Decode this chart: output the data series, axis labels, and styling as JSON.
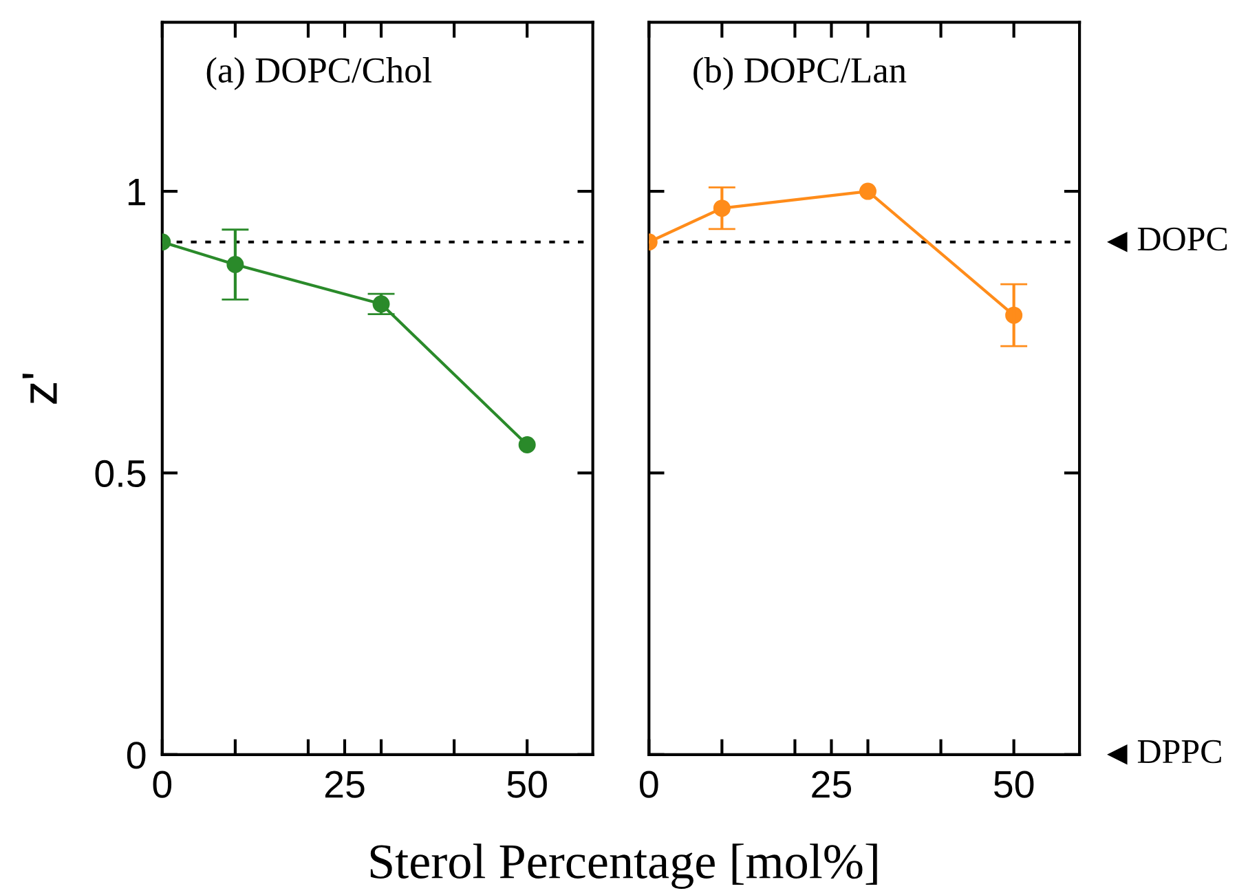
{
  "chart_data": [
    {
      "type": "line",
      "title": "(a) DOPC/Chol",
      "xlabel": "Sterol Percentage [mol%]",
      "ylabel": "z'",
      "x": [
        0,
        10,
        30,
        50
      ],
      "series": [
        {
          "color": "#2a8a2a",
          "values": [
            0.91,
            0.87,
            0.8,
            0.55
          ],
          "errors": [
            null,
            0.062,
            0.018,
            null
          ]
        }
      ],
      "xlim": [
        0,
        59
      ],
      "xticks": [
        0,
        {
          "value": 10,
          "label": null
        },
        {
          "value": 20,
          "label": null
        },
        25,
        {
          "value": 30,
          "label": null
        },
        {
          "value": 40,
          "label": null
        },
        50
      ],
      "ylim": [
        0,
        1.3
      ],
      "yticks": [
        0,
        0.5,
        1
      ],
      "marker": "circle",
      "line_style": "solid",
      "grid": false,
      "legend": false,
      "ref_lines": [
        {
          "axis": "y",
          "value": 0.91,
          "color": "#000000",
          "line_style": "dotted"
        }
      ]
    },
    {
      "type": "line",
      "title": "(b) DOPC/Lan",
      "x": [
        0,
        10,
        30,
        50
      ],
      "series": [
        {
          "color": "#ff8c1a",
          "values": [
            0.91,
            0.97,
            1.0,
            0.78
          ],
          "errors": [
            null,
            0.037,
            null,
            0.055
          ]
        }
      ],
      "xlim": [
        0,
        59
      ],
      "xticks": [
        0,
        {
          "value": 10,
          "label": null
        },
        {
          "value": 20,
          "label": null
        },
        25,
        {
          "value": 30,
          "label": null
        },
        {
          "value": 40,
          "label": null
        },
        50
      ],
      "ylim": [
        0,
        1.3
      ],
      "yticks": [
        0,
        0.5,
        1
      ],
      "marker": "circle",
      "line_style": "solid",
      "grid": false,
      "legend": false,
      "tick_labels": "x",
      "annotations": [
        "DPPC"
      ],
      "ref_lines": [
        {
          "axis": "y",
          "value": 0.91,
          "label": "DOPC",
          "color": "#000000",
          "line_style": "dotted"
        }
      ]
    }
  ]
}
